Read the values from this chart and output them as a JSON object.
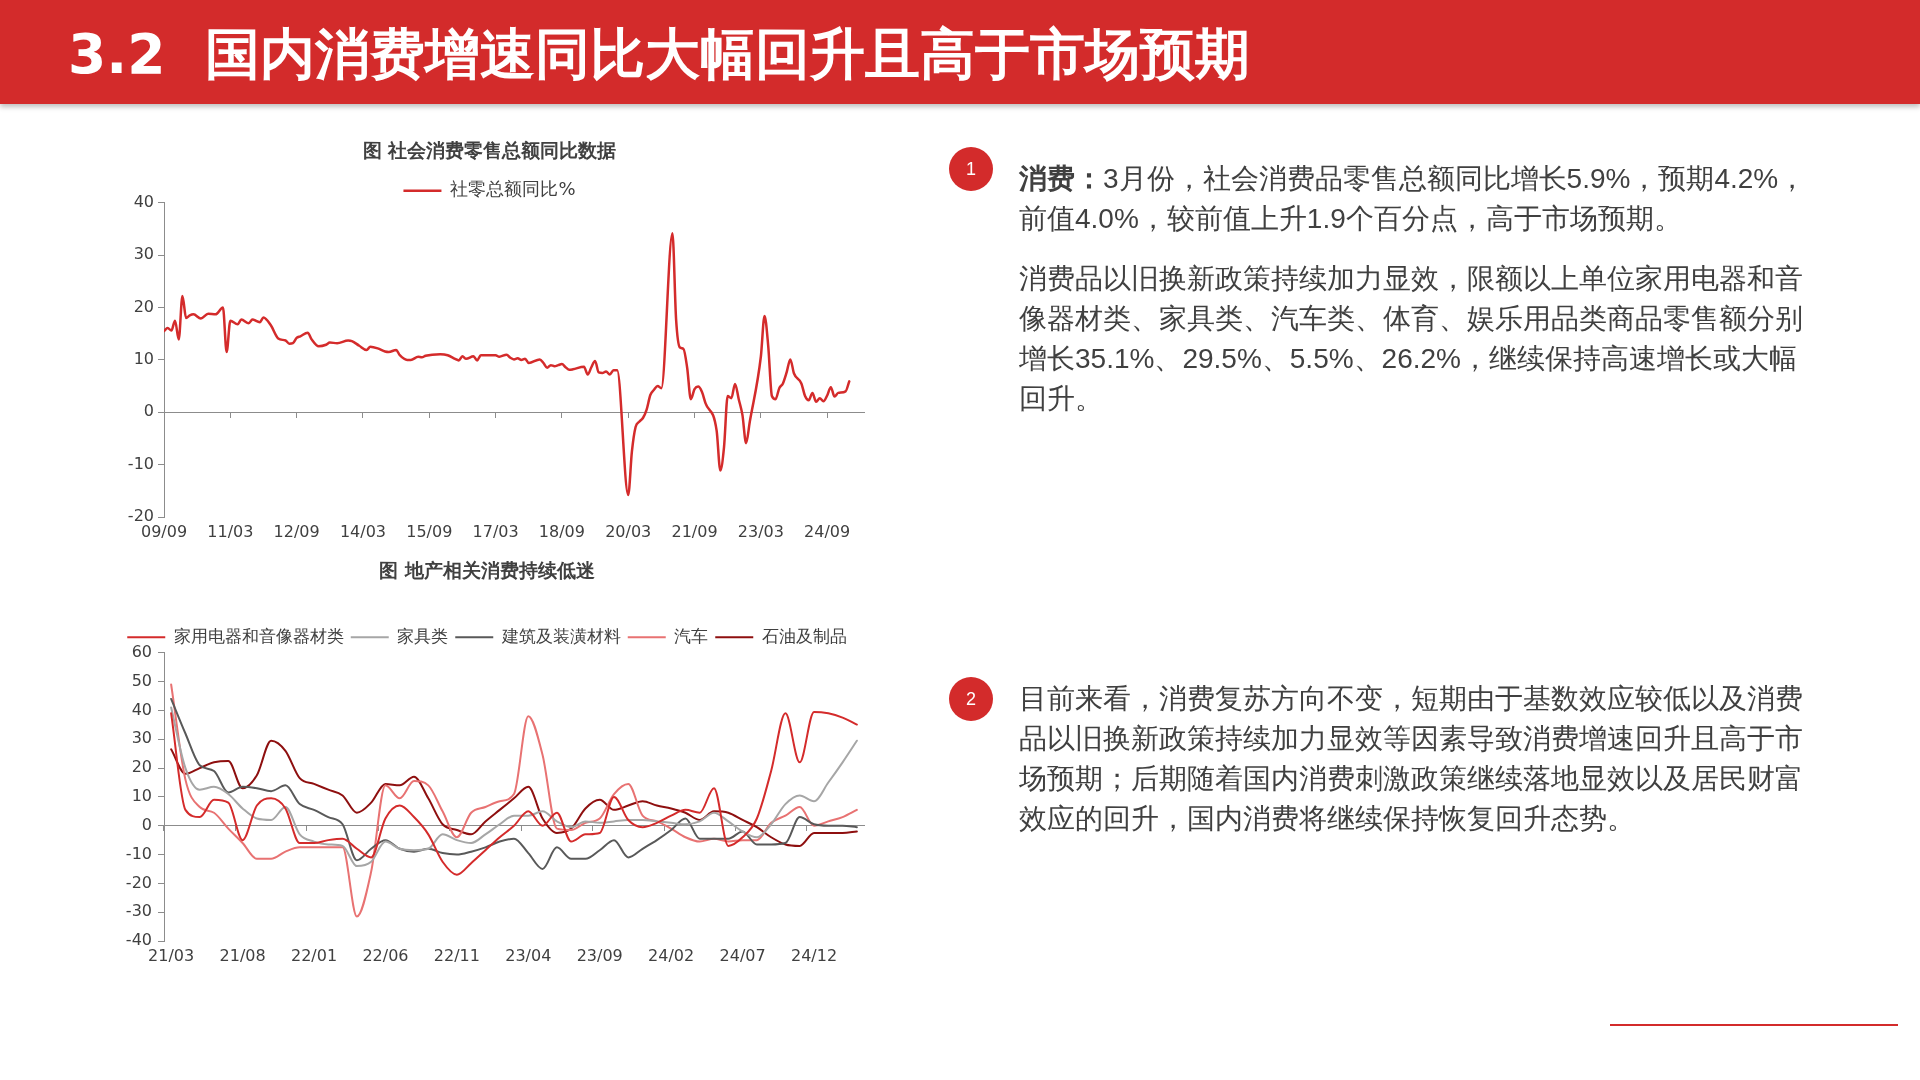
{
  "chart_data": [
    {
      "type": "other",
      "title": "3.2 国内消费增速同比大幅回升且高于市场预期",
      "annotations": [
        "1",
        "消费：",
        "3月份，社会消费品零售总额同比增长5.9%，预期4.2%，前值4.0%，较前值上升1.9个百分点，高于市场预期。",
        "消费品以旧换新政策持续加力显效，限额以上单位家用电器和音像器材类、家具类、汽车类、体育、娱乐用品类商品零售额分别增长35.1%、29.5%、5.5%、26.2%，继续保持高速增长或大幅回升。",
        "2",
        "目前来看，消费复苏方向不变，短期由于基数效应较低以及消费品以旧换新政策持续加力显效等因素导致消费增速回升且高于市场预期；后期随着国内消费刺激政策继续落地显效以及居民财富效应的回升，国内消费将继续保持恢复回升态势。"
      ]
    },
    {
      "type": "line",
      "title": "图 社会消费零售总额同比数据",
      "legend": "top",
      "x": [
        "2009-09",
        "2009-10",
        "2009-11",
        "2009-12",
        "2010-01",
        "2010-02",
        "2010-03",
        "2010-04",
        "2010-05",
        "2010-07",
        "2010-09",
        "2010-11",
        "2011-01",
        "2011-02",
        "2011-03",
        "2011-05",
        "2011-06",
        "2011-08",
        "2011-09",
        "2011-11",
        "2011-12",
        "2012-02",
        "2012-04",
        "2012-06",
        "2012-07",
        "2012-08",
        "2012-09",
        "2012-10",
        "2012-12",
        "2013-01",
        "2013-03",
        "2013-05",
        "2013-06",
        "2013-08",
        "2013-11",
        "2013-12",
        "2014-02",
        "2014-04",
        "2014-05",
        "2014-07",
        "2014-09",
        "2014-10",
        "2014-12",
        "2015-01",
        "2015-03",
        "2015-04",
        "2015-06",
        "2015-07",
        "2015-08",
        "2015-12",
        "2016-02",
        "2016-04",
        "2016-05",
        "2016-06",
        "2016-07",
        "2016-09",
        "2016-10",
        "2016-11",
        "2017-03",
        "2017-04",
        "2017-06",
        "2017-07",
        "2017-08",
        "2017-09",
        "2017-10",
        "2017-11",
        "2017-12",
        "2018-03",
        "2018-04",
        "2018-05",
        "2018-06",
        "2018-07",
        "2018-08",
        "2018-09",
        "2018-10",
        "2018-11",
        "2018-12",
        "2019-03",
        "2019-04",
        "2019-05",
        "2019-06",
        "2019-07",
        "2019-08",
        "2019-09",
        "2019-10",
        "2019-11",
        "2019-12",
        "2020-03",
        "2020-04",
        "2020-05",
        "2020-06",
        "2020-07",
        "2020-08",
        "2020-09",
        "2020-10",
        "2020-11",
        "2020-12",
        "2021-03",
        "2021-04",
        "2021-05",
        "2021-06",
        "2021-07",
        "2021-08",
        "2021-09",
        "2021-10",
        "2021-11",
        "2021-12",
        "2022-03",
        "2022-04",
        "2022-05",
        "2022-06",
        "2022-07",
        "2022-08",
        "2022-09",
        "2022-10",
        "2022-11",
        "2022-12",
        "2023-03",
        "2023-04",
        "2023-05",
        "2023-06",
        "2023-07",
        "2023-08",
        "2023-09",
        "2023-10",
        "2023-11",
        "2023-12",
        "2024-02",
        "2024-03",
        "2024-04",
        "2024-05",
        "2024-06",
        "2024-07",
        "2024-08",
        "2024-09",
        "2024-10",
        "2024-11",
        "2024-12",
        "2025-02",
        "2025-03"
      ],
      "series": [
        {
          "name": "社零总额同比%",
          "color": "#d42b2b",
          "values": [
            15.5,
            16.1,
            15.6,
            17.5,
            13.9,
            22.2,
            18.0,
            18.5,
            18.7,
            17.9,
            18.8,
            18.7,
            20.0,
            11.5,
            17.5,
            16.8,
            17.7,
            17.0,
            17.7,
            17.2,
            18.1,
            16.6,
            14.1,
            13.7,
            13.1,
            13.2,
            14.2,
            14.5,
            15.2,
            14.0,
            12.6,
            12.9,
            13.3,
            13.2,
            13.7,
            13.6,
            12.7,
            11.9,
            12.5,
            12.2,
            11.6,
            11.5,
            11.9,
            10.9,
            10.0,
            10.0,
            10.6,
            10.5,
            10.8,
            11.1,
            10.9,
            10.2,
            9.9,
            10.7,
            10.2,
            10.7,
            9.9,
            10.9,
            10.9,
            10.6,
            11.0,
            10.4,
            10.1,
            10.3,
            10.0,
            10.2,
            9.4,
            10.1,
            9.4,
            8.5,
            9.0,
            8.8,
            9.0,
            9.2,
            8.6,
            8.1,
            8.2,
            8.7,
            7.2,
            8.6,
            9.8,
            7.6,
            7.5,
            7.8,
            7.2,
            8.0,
            8.0,
            -15.8,
            -7.5,
            -2.8,
            -1.8,
            -1.1,
            0.5,
            3.3,
            4.3,
            5.0,
            4.6,
            34.2,
            17.7,
            12.4,
            12.1,
            8.5,
            2.5,
            4.4,
            4.9,
            3.9,
            1.7,
            -3.5,
            -11.1,
            -6.7,
            3.1,
            2.7,
            5.4,
            2.5,
            -0.5,
            -5.9,
            -1.8,
            10.6,
            18.4,
            12.7,
            3.1,
            2.5,
            4.6,
            5.5,
            7.6,
            10.1,
            7.4,
            5.5,
            3.1,
            2.3,
            3.7,
            2.0,
            2.7,
            2.1,
            3.2,
            4.8,
            3.0,
            3.7,
            4.0,
            5.9
          ]
        }
      ],
      "xlim": [
        "2009-09",
        "2025-07"
      ],
      "xticks": [
        {
          "value": "2009-09",
          "label": "09/09"
        },
        {
          "value": "2011-03",
          "label": "11/03"
        },
        {
          "value": "2012-09",
          "label": "12/09"
        },
        {
          "value": "2014-03",
          "label": "14/03"
        },
        {
          "value": "2015-09",
          "label": "15/09"
        },
        {
          "value": "2017-03",
          "label": "17/03"
        },
        {
          "value": "2018-09",
          "label": "18/09"
        },
        {
          "value": "2020-03",
          "label": "20/03"
        },
        {
          "value": "2021-09",
          "label": "21/09"
        },
        {
          "value": "2023-03",
          "label": "23/03"
        },
        {
          "value": "2024-09",
          "label": "24/09"
        }
      ],
      "ylim": [
        -20,
        40
      ],
      "yticks": [
        -20,
        -10,
        0,
        10,
        20,
        30,
        40
      ]
    },
    {
      "type": "line",
      "title": "图 地产相关消费持续低迷",
      "legend": "top",
      "categories": [
        "21/03",
        null,
        null,
        null,
        null,
        "21/08",
        null,
        null,
        null,
        null,
        "22/01",
        null,
        null,
        null,
        null,
        "22/06",
        null,
        null,
        null,
        null,
        "22/11",
        null,
        null,
        null,
        null,
        "23/04",
        null,
        null,
        null,
        null,
        "23/09",
        null,
        null,
        null,
        null,
        "24/02",
        null,
        null,
        null,
        null,
        "24/07",
        null,
        null,
        null,
        null,
        "24/12",
        null,
        null,
        null
      ],
      "series": [
        {
          "name": "家用电器和音像器材类",
          "color": "#d42b2b",
          "values": [
            39,
            5.5,
            3,
            9,
            8,
            -5,
            7,
            9.5,
            6,
            -6,
            -6,
            -5,
            -4.5,
            -8,
            -11,
            2.5,
            7,
            3,
            -3,
            -12.5,
            -17,
            -13,
            -8.5,
            -4,
            0,
            5,
            0,
            4.5,
            -5.5,
            -3,
            -2.5,
            10,
            2,
            -0.5,
            1,
            3.5,
            5.5,
            4.5,
            13,
            -7,
            -4,
            2.5,
            19,
            39,
            22,
            39.5,
            39,
            37.5,
            35.1
          ]
        },
        {
          "name": "家具类",
          "color": "#a6a6a6",
          "values": [
            41,
            20,
            12.5,
            13.5,
            11,
            6,
            2.5,
            2,
            6.5,
            -3,
            -5.5,
            -6.5,
            -7,
            -14,
            -12.5,
            -5.5,
            -8,
            -8.5,
            -8,
            -3,
            -5,
            -6,
            -3,
            0.5,
            3.5,
            3.5,
            5,
            1.5,
            -0.5,
            1.5,
            1,
            1.5,
            2,
            2,
            1.5,
            1,
            0.5,
            1.5,
            4.5,
            1.5,
            -2,
            -4,
            0.5,
            7.5,
            10.5,
            8.5,
            15,
            22,
            29.5
          ]
        },
        {
          "name": "建筑及装潢材料",
          "color": "#595959",
          "values": [
            44,
            32,
            21,
            19,
            11.5,
            13.5,
            13,
            12,
            14,
            7.5,
            5.5,
            3,
            0.5,
            -12,
            -8,
            -5,
            -8,
            -9,
            -8,
            -9.5,
            -10,
            -9,
            -7.5,
            -5.5,
            -4.5,
            -9.5,
            -15,
            -7.5,
            -11.5,
            -11.5,
            -8.5,
            -5,
            -11,
            -8,
            -5,
            -1.5,
            2.5,
            -4.5,
            -4.5,
            -4.5,
            -2,
            -6.5,
            -6.5,
            -6,
            3,
            0.5,
            0,
            0,
            -0.5
          ]
        },
        {
          "name": "汽车",
          "color": "#e87272",
          "values": [
            49,
            16,
            6.5,
            4.5,
            -1,
            -6,
            -11.5,
            -11.5,
            -9,
            -7.5,
            -7.5,
            -7.5,
            -7.5,
            -31.5,
            -16,
            14,
            9.5,
            15.5,
            14,
            5,
            -4,
            4.5,
            6.5,
            8.5,
            11,
            38,
            24.5,
            -1,
            -1.5,
            1,
            2.5,
            11,
            14.5,
            3.5,
            1.5,
            -1,
            -4,
            -5.5,
            -4.5,
            -5.5,
            -5,
            -5,
            1,
            3.5,
            6.5,
            0,
            1.5,
            3,
            5.5
          ]
        },
        {
          "name": "石油及制品",
          "color": "#8e0f0f",
          "values": [
            26.5,
            18,
            20,
            22,
            22.5,
            13,
            17.5,
            29.5,
            26,
            16.5,
            14.5,
            12.5,
            10.5,
            4.5,
            8,
            14.5,
            14,
            17,
            9.5,
            0.5,
            -1.5,
            -3,
            1.5,
            5.5,
            9.5,
            13.5,
            2.5,
            -2.5,
            -1,
            6,
            9,
            5.5,
            7,
            8.5,
            7,
            6,
            4.5,
            2,
            5,
            4.5,
            2,
            -0.5,
            -4,
            -6.5,
            -7,
            -2.5,
            -2.5,
            -2.5,
            -2
          ]
        }
      ],
      "ylim": [
        -40,
        60
      ],
      "yticks": [
        -40,
        -30,
        -20,
        -10,
        0,
        10,
        20,
        30,
        40,
        50,
        60
      ]
    }
  ]
}
